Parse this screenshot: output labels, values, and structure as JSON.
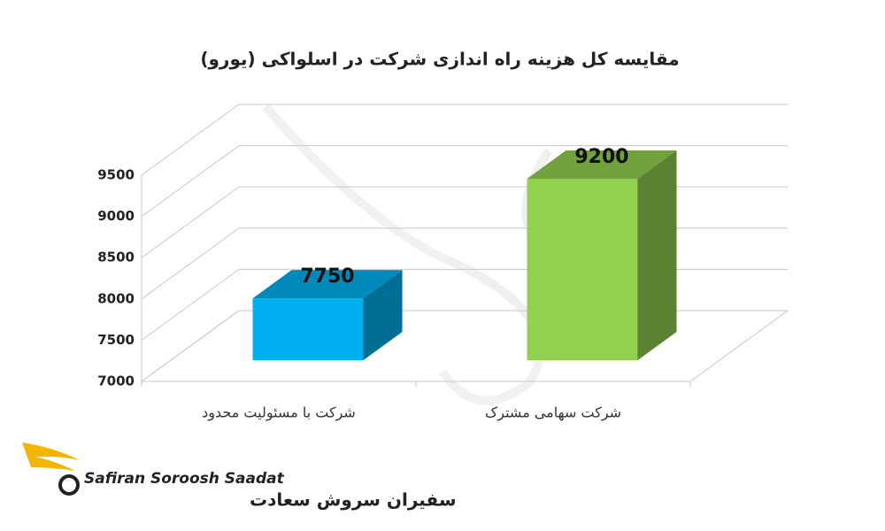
{
  "chart_data": {
    "type": "bar3d",
    "title": "مقایسه کل هزینه راه اندازی شرکت در اسلواکی (یورو)",
    "categories": [
      "شرکت با مسئولیت محدود",
      "شرکت سهامی مشترک"
    ],
    "values": [
      7750,
      9200
    ],
    "colors": [
      "#00b0f0",
      "#92d050"
    ],
    "ylim": [
      7000,
      9500
    ],
    "yticks": [
      7000,
      7500,
      8000,
      8500,
      9000,
      9500
    ],
    "grid": true
  },
  "logo": {
    "latin": "Safiran Soroosh Saadat",
    "persian": "سفیران سروش سعادت"
  }
}
